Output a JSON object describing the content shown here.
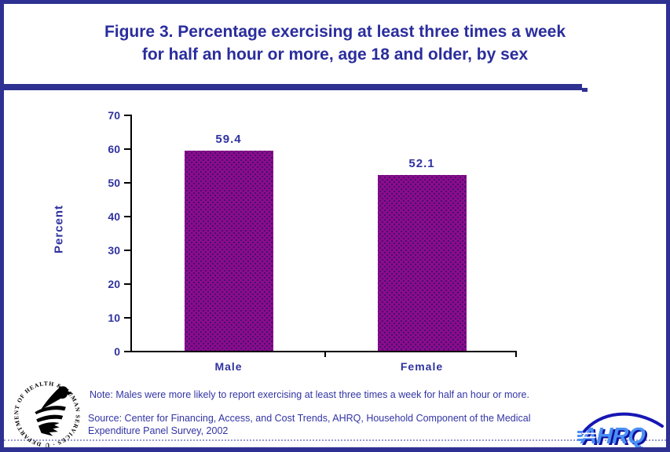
{
  "title": {
    "line1": "Figure 3. Percentage exercising at least three times a week",
    "line2": "for half an hour or more, age 18 and older, by sex"
  },
  "chart_data": {
    "type": "bar",
    "categories": [
      "Male",
      "Female"
    ],
    "values": [
      59.4,
      52.1
    ],
    "value_labels": [
      "59.4",
      "52.1"
    ],
    "title": "Figure 3. Percentage exercising at least three times a week for half an hour or more, age 18 and older, by sex",
    "xlabel": "",
    "ylabel": "Percent",
    "ylim": [
      0,
      70
    ],
    "yticks": [
      0,
      10,
      20,
      30,
      40,
      50,
      60,
      70
    ],
    "grid": false,
    "legend": "none",
    "bar_color": "#8d0b8d",
    "bar_dot_color": "#451070"
  },
  "note": "Note: Males were more likely to report exercising at least three times a week for half an hour or more.",
  "source_line1": "Source: Center for Financing, Access, and Cost Trends, AHRQ, Household Component of the Medical",
  "source_line2": "Expenditure Panel Survey, 2002",
  "logos": {
    "ahrq_text": "AHRQ",
    "hhs_circle_text": "DEPARTMENT OF HEALTH & HUMAN SERVICES · USA"
  },
  "colors": {
    "frame_navy": "#2e3192",
    "text_blue": "#2a2d9c",
    "bar_purple": "#8d0b8d",
    "axis_black": "#000000"
  }
}
